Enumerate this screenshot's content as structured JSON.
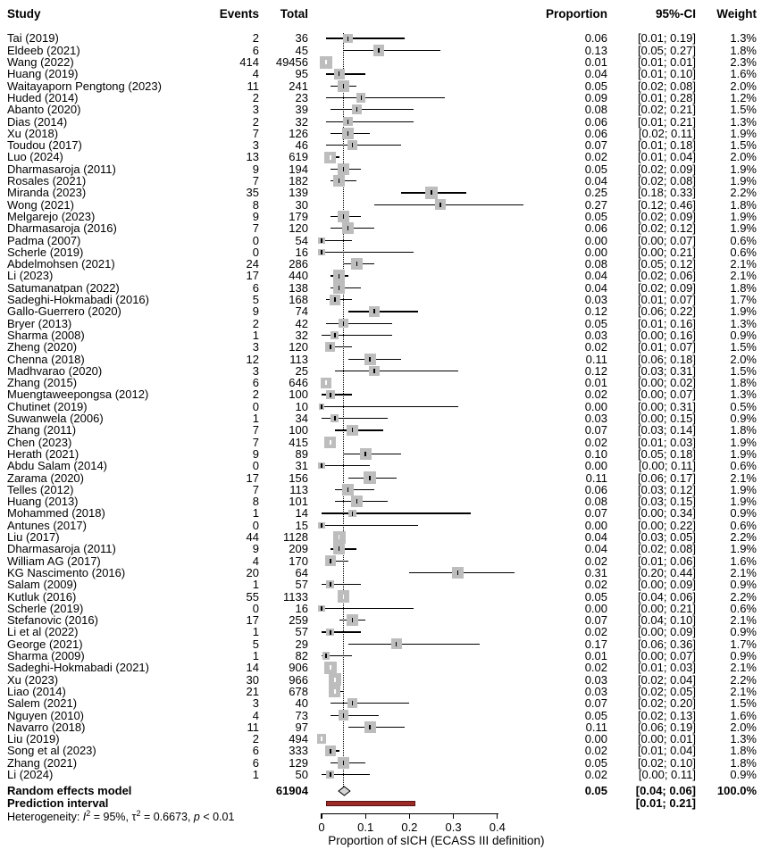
{
  "header": {
    "study": "Study",
    "events": "Events",
    "total": "Total",
    "proportion": "Proportion",
    "ci": "95%-CI",
    "weight": "Weight"
  },
  "summary": {
    "random_label": "Random effects model",
    "random_total": "61904",
    "random_proportion": "0.05",
    "random_ci": "[0.04; 0.06]",
    "random_weight": "100.0%",
    "prediction_label": "Prediction interval",
    "prediction_ci": "[0.01; 0.21]"
  },
  "het": {
    "pre": "Heterogeneity: ",
    "i": "I",
    "sup1": "2",
    "mid1": " = 95%, ",
    "tau": "τ",
    "sup2": "2",
    "mid2": " = 0.6673, ",
    "p": "p",
    "post": " < 0.01"
  },
  "axis": {
    "xlabel": "Proportion of sICH (ECASS III definition)"
  },
  "colors": {
    "square": "#bdbdbd",
    "diamond_fill": "#d4d4d4",
    "diamond_border": "#000000",
    "prediction_fill": "#9c2b28",
    "prediction_border": "#5a1412",
    "line": "#000000"
  },
  "chart_data": {
    "type": "forest",
    "xlabel": "Proportion of sICH (ECASS III definition)",
    "xlim": [
      0,
      0.46
    ],
    "x_ticks": [
      0,
      0.1,
      0.2,
      0.3,
      0.4
    ],
    "x_tick_labels": [
      "0",
      "0.1",
      "0.2",
      "0.3",
      "0.4"
    ],
    "pooled": {
      "label": "Random effects model",
      "total": 61904,
      "proportion": 0.05,
      "lower": 0.04,
      "upper": 0.06,
      "ci": "[0.04; 0.06]",
      "weight_text": "100.0%"
    },
    "prediction_interval": {
      "label": "Prediction interval",
      "lower": 0.01,
      "upper": 0.21,
      "ci": "[0.01; 0.21]"
    },
    "heterogeneity_text": "Heterogeneity: I² = 95%, τ² = 0.6673, p < 0.01",
    "studies": [
      {
        "study": "Tai (2019)",
        "events": 2,
        "total": 36,
        "proportion": 0.06,
        "lower": 0.01,
        "upper": 0.19,
        "ci": "[0.01; 0.19]",
        "weight": 1.3,
        "weight_text": "1.3%"
      },
      {
        "study": "Eldeeb (2021)",
        "events": 6,
        "total": 45,
        "proportion": 0.13,
        "lower": 0.05,
        "upper": 0.27,
        "ci": "[0.05; 0.27]",
        "weight": 1.8,
        "weight_text": "1.8%"
      },
      {
        "study": "Wang (2022)",
        "events": 414,
        "total": 49456,
        "proportion": 0.01,
        "lower": 0.01,
        "upper": 0.01,
        "ci": "[0.01; 0.01]",
        "weight": 2.3,
        "weight_text": "2.3%",
        "marker": "white"
      },
      {
        "study": "Huang (2019)",
        "events": 4,
        "total": 95,
        "proportion": 0.04,
        "lower": 0.01,
        "upper": 0.1,
        "ci": "[0.01; 0.10]",
        "weight": 1.6,
        "weight_text": "1.6%"
      },
      {
        "study": "Waitayaporn Pengtong (2023)",
        "events": 11,
        "total": 241,
        "proportion": 0.05,
        "lower": 0.02,
        "upper": 0.08,
        "ci": "[0.02; 0.08]",
        "weight": 2.0,
        "weight_text": "2.0%"
      },
      {
        "study": "Huded (2014)",
        "events": 2,
        "total": 23,
        "proportion": 0.09,
        "lower": 0.01,
        "upper": 0.28,
        "ci": "[0.01; 0.28]",
        "weight": 1.2,
        "weight_text": "1.2%"
      },
      {
        "study": "Abanto (2020)",
        "events": 3,
        "total": 39,
        "proportion": 0.08,
        "lower": 0.02,
        "upper": 0.21,
        "ci": "[0.02; 0.21]",
        "weight": 1.5,
        "weight_text": "1.5%"
      },
      {
        "study": "Dias (2014)",
        "events": 2,
        "total": 32,
        "proportion": 0.06,
        "lower": 0.01,
        "upper": 0.21,
        "ci": "[0.01; 0.21]",
        "weight": 1.3,
        "weight_text": "1.3%"
      },
      {
        "study": "Xu (2018)",
        "events": 7,
        "total": 126,
        "proportion": 0.06,
        "lower": 0.02,
        "upper": 0.11,
        "ci": "[0.02; 0.11]",
        "weight": 1.9,
        "weight_text": "1.9%"
      },
      {
        "study": "Toudou (2017)",
        "events": 3,
        "total": 46,
        "proportion": 0.07,
        "lower": 0.01,
        "upper": 0.18,
        "ci": "[0.01; 0.18]",
        "weight": 1.5,
        "weight_text": "1.5%"
      },
      {
        "study": "Luo (2024)",
        "events": 13,
        "total": 619,
        "proportion": 0.02,
        "lower": 0.01,
        "upper": 0.04,
        "ci": "[0.01; 0.04]",
        "weight": 2.0,
        "weight_text": "2.0%",
        "marker": "white"
      },
      {
        "study": "Dharmasaroja (2011)",
        "events": 9,
        "total": 194,
        "proportion": 0.05,
        "lower": 0.02,
        "upper": 0.09,
        "ci": "[0.02; 0.09]",
        "weight": 1.9,
        "weight_text": "1.9%"
      },
      {
        "study": "Rosales (2021)",
        "events": 7,
        "total": 182,
        "proportion": 0.04,
        "lower": 0.02,
        "upper": 0.08,
        "ci": "[0.02; 0.08]",
        "weight": 1.9,
        "weight_text": "1.9%"
      },
      {
        "study": "Miranda (2023)",
        "events": 35,
        "total": 139,
        "proportion": 0.25,
        "lower": 0.18,
        "upper": 0.33,
        "ci": "[0.18; 0.33]",
        "weight": 2.2,
        "weight_text": "2.2%"
      },
      {
        "study": "Wong (2021)",
        "events": 8,
        "total": 30,
        "proportion": 0.27,
        "lower": 0.12,
        "upper": 0.46,
        "ci": "[0.12; 0.46]",
        "weight": 1.8,
        "weight_text": "1.8%"
      },
      {
        "study": "Melgarejo (2023)",
        "events": 9,
        "total": 179,
        "proportion": 0.05,
        "lower": 0.02,
        "upper": 0.09,
        "ci": "[0.02; 0.09]",
        "weight": 1.9,
        "weight_text": "1.9%"
      },
      {
        "study": "Dharmasaroja (2016)",
        "events": 7,
        "total": 120,
        "proportion": 0.06,
        "lower": 0.02,
        "upper": 0.12,
        "ci": "[0.02; 0.12]",
        "weight": 1.9,
        "weight_text": "1.9%"
      },
      {
        "study": "Padma (2007)",
        "events": 0,
        "total": 54,
        "proportion": 0.0,
        "lower": 0.0,
        "upper": 0.07,
        "ci": "[0.00; 0.07]",
        "weight": 0.6,
        "weight_text": "0.6%"
      },
      {
        "study": "Scherle (2019)",
        "events": 0,
        "total": 16,
        "proportion": 0.0,
        "lower": 0.0,
        "upper": 0.21,
        "ci": "[0.00; 0.21]",
        "weight": 0.6,
        "weight_text": "0.6%"
      },
      {
        "study": "Abdelmohsen (2021)",
        "events": 24,
        "total": 286,
        "proportion": 0.08,
        "lower": 0.05,
        "upper": 0.12,
        "ci": "[0.05; 0.12]",
        "weight": 2.1,
        "weight_text": "2.1%"
      },
      {
        "study": "Li (2023)",
        "events": 17,
        "total": 440,
        "proportion": 0.04,
        "lower": 0.02,
        "upper": 0.06,
        "ci": "[0.02; 0.06]",
        "weight": 2.1,
        "weight_text": "2.1%"
      },
      {
        "study": "Satumanatpan (2022)",
        "events": 6,
        "total": 138,
        "proportion": 0.04,
        "lower": 0.02,
        "upper": 0.09,
        "ci": "[0.02; 0.09]",
        "weight": 1.8,
        "weight_text": "1.8%"
      },
      {
        "study": "Sadeghi-Hokmabadi (2016)",
        "events": 5,
        "total": 168,
        "proportion": 0.03,
        "lower": 0.01,
        "upper": 0.07,
        "ci": "[0.01; 0.07]",
        "weight": 1.7,
        "weight_text": "1.7%"
      },
      {
        "study": "Gallo-Guerrero (2020)",
        "events": 9,
        "total": 74,
        "proportion": 0.12,
        "lower": 0.06,
        "upper": 0.22,
        "ci": "[0.06; 0.22]",
        "weight": 1.9,
        "weight_text": "1.9%"
      },
      {
        "study": "Bryer (2013)",
        "events": 2,
        "total": 42,
        "proportion": 0.05,
        "lower": 0.01,
        "upper": 0.16,
        "ci": "[0.01; 0.16]",
        "weight": 1.3,
        "weight_text": "1.3%"
      },
      {
        "study": "Sharma (2008)",
        "events": 1,
        "total": 32,
        "proportion": 0.03,
        "lower": 0.0,
        "upper": 0.16,
        "ci": "[0.00; 0.16]",
        "weight": 0.9,
        "weight_text": "0.9%"
      },
      {
        "study": "Zheng (2020)",
        "events": 3,
        "total": 120,
        "proportion": 0.02,
        "lower": 0.01,
        "upper": 0.07,
        "ci": "[0.01; 0.07]",
        "weight": 1.5,
        "weight_text": "1.5%"
      },
      {
        "study": "Chenna (2018)",
        "events": 12,
        "total": 113,
        "proportion": 0.11,
        "lower": 0.06,
        "upper": 0.18,
        "ci": "[0.06; 0.18]",
        "weight": 2.0,
        "weight_text": "2.0%"
      },
      {
        "study": "Madhvarao (2020)",
        "events": 3,
        "total": 25,
        "proportion": 0.12,
        "lower": 0.03,
        "upper": 0.31,
        "ci": "[0.03; 0.31]",
        "weight": 1.5,
        "weight_text": "1.5%"
      },
      {
        "study": "Zhang (2015)",
        "events": 6,
        "total": 646,
        "proportion": 0.01,
        "lower": 0.0,
        "upper": 0.02,
        "ci": "[0.00; 0.02]",
        "weight": 1.8,
        "weight_text": "1.8%",
        "marker": "white"
      },
      {
        "study": "Muengtaweepongsa (2012)",
        "events": 2,
        "total": 100,
        "proportion": 0.02,
        "lower": 0.0,
        "upper": 0.07,
        "ci": "[0.00; 0.07]",
        "weight": 1.3,
        "weight_text": "1.3%"
      },
      {
        "study": "Chutinet (2019)",
        "events": 0,
        "total": 10,
        "proportion": 0.0,
        "lower": 0.0,
        "upper": 0.31,
        "ci": "[0.00; 0.31]",
        "weight": 0.5,
        "weight_text": "0.5%"
      },
      {
        "study": "Suwanwela (2006)",
        "events": 1,
        "total": 34,
        "proportion": 0.03,
        "lower": 0.0,
        "upper": 0.15,
        "ci": "[0.00; 0.15]",
        "weight": 0.9,
        "weight_text": "0.9%"
      },
      {
        "study": "Zhang (2011)",
        "events": 7,
        "total": 100,
        "proportion": 0.07,
        "lower": 0.03,
        "upper": 0.14,
        "ci": "[0.03; 0.14]",
        "weight": 1.8,
        "weight_text": "1.8%"
      },
      {
        "study": "Chen (2023)",
        "events": 7,
        "total": 415,
        "proportion": 0.02,
        "lower": 0.01,
        "upper": 0.03,
        "ci": "[0.01; 0.03]",
        "weight": 1.9,
        "weight_text": "1.9%",
        "marker": "white"
      },
      {
        "study": "Herath (2021)",
        "events": 9,
        "total": 89,
        "proportion": 0.1,
        "lower": 0.05,
        "upper": 0.18,
        "ci": "[0.05; 0.18]",
        "weight": 1.9,
        "weight_text": "1.9%"
      },
      {
        "study": "Abdu Salam (2014)",
        "events": 0,
        "total": 31,
        "proportion": 0.0,
        "lower": 0.0,
        "upper": 0.11,
        "ci": "[0.00; 0.11]",
        "weight": 0.6,
        "weight_text": "0.6%"
      },
      {
        "study": "Zarama (2020)",
        "events": 17,
        "total": 156,
        "proportion": 0.11,
        "lower": 0.06,
        "upper": 0.17,
        "ci": "[0.06; 0.17]",
        "weight": 2.1,
        "weight_text": "2.1%"
      },
      {
        "study": "Telles (2012)",
        "events": 7,
        "total": 113,
        "proportion": 0.06,
        "lower": 0.03,
        "upper": 0.12,
        "ci": "[0.03; 0.12]",
        "weight": 1.9,
        "weight_text": "1.9%"
      },
      {
        "study": "Huang (2013)",
        "events": 8,
        "total": 101,
        "proportion": 0.08,
        "lower": 0.03,
        "upper": 0.15,
        "ci": "[0.03; 0.15]",
        "weight": 1.9,
        "weight_text": "1.9%"
      },
      {
        "study": "Mohammed (2018)",
        "events": 1,
        "total": 14,
        "proportion": 0.07,
        "lower": 0.0,
        "upper": 0.34,
        "ci": "[0.00; 0.34]",
        "weight": 0.9,
        "weight_text": "0.9%"
      },
      {
        "study": "Antunes (2017)",
        "events": 0,
        "total": 15,
        "proportion": 0.0,
        "lower": 0.0,
        "upper": 0.22,
        "ci": "[0.00; 0.22]",
        "weight": 0.6,
        "weight_text": "0.6%"
      },
      {
        "study": "Liu (2017)",
        "events": 44,
        "total": 1128,
        "proportion": 0.04,
        "lower": 0.03,
        "upper": 0.05,
        "ci": "[0.03; 0.05]",
        "weight": 2.2,
        "weight_text": "2.2%",
        "marker": "white"
      },
      {
        "study": "Dharmasaroja (2011)",
        "events": 9,
        "total": 209,
        "proportion": 0.04,
        "lower": 0.02,
        "upper": 0.08,
        "ci": "[0.02; 0.08]",
        "weight": 1.9,
        "weight_text": "1.9%"
      },
      {
        "study": "William AG (2017)",
        "events": 4,
        "total": 170,
        "proportion": 0.02,
        "lower": 0.01,
        "upper": 0.06,
        "ci": "[0.01; 0.06]",
        "weight": 1.6,
        "weight_text": "1.6%"
      },
      {
        "study": "KG Nascimento (2016)",
        "events": 20,
        "total": 64,
        "proportion": 0.31,
        "lower": 0.2,
        "upper": 0.44,
        "ci": "[0.20; 0.44]",
        "weight": 2.1,
        "weight_text": "2.1%"
      },
      {
        "study": "Salam (2009)",
        "events": 1,
        "total": 57,
        "proportion": 0.02,
        "lower": 0.0,
        "upper": 0.09,
        "ci": "[0.00; 0.09]",
        "weight": 0.9,
        "weight_text": "0.9%"
      },
      {
        "study": "Kutluk (2016)",
        "events": 55,
        "total": 1133,
        "proportion": 0.05,
        "lower": 0.04,
        "upper": 0.06,
        "ci": "[0.04; 0.06]",
        "weight": 2.2,
        "weight_text": "2.2%",
        "marker": "white"
      },
      {
        "study": "Scherle (2019)",
        "events": 0,
        "total": 16,
        "proportion": 0.0,
        "lower": 0.0,
        "upper": 0.21,
        "ci": "[0.00; 0.21]",
        "weight": 0.6,
        "weight_text": "0.6%"
      },
      {
        "study": "Stefanovic (2016)",
        "events": 17,
        "total": 259,
        "proportion": 0.07,
        "lower": 0.04,
        "upper": 0.1,
        "ci": "[0.04; 0.10]",
        "weight": 2.1,
        "weight_text": "2.1%"
      },
      {
        "study": "Li et al (2022)",
        "events": 1,
        "total": 57,
        "proportion": 0.02,
        "lower": 0.0,
        "upper": 0.09,
        "ci": "[0.00; 0.09]",
        "weight": 0.9,
        "weight_text": "0.9%"
      },
      {
        "study": "George (2021)",
        "events": 5,
        "total": 29,
        "proportion": 0.17,
        "lower": 0.06,
        "upper": 0.36,
        "ci": "[0.06; 0.36]",
        "weight": 1.7,
        "weight_text": "1.7%"
      },
      {
        "study": "Sharma (2009)",
        "events": 1,
        "total": 82,
        "proportion": 0.01,
        "lower": 0.0,
        "upper": 0.07,
        "ci": "[0.00; 0.07]",
        "weight": 0.9,
        "weight_text": "0.9%"
      },
      {
        "study": "Sadeghi-Hokmabadi (2021)",
        "events": 14,
        "total": 906,
        "proportion": 0.02,
        "lower": 0.01,
        "upper": 0.03,
        "ci": "[0.01; 0.03]",
        "weight": 2.1,
        "weight_text": "2.1%",
        "marker": "white"
      },
      {
        "study": "Xu (2023)",
        "events": 30,
        "total": 966,
        "proportion": 0.03,
        "lower": 0.02,
        "upper": 0.04,
        "ci": "[0.02; 0.04]",
        "weight": 2.2,
        "weight_text": "2.2%",
        "marker": "white"
      },
      {
        "study": "Liao (2014)",
        "events": 21,
        "total": 678,
        "proportion": 0.03,
        "lower": 0.02,
        "upper": 0.05,
        "ci": "[0.02; 0.05]",
        "weight": 2.1,
        "weight_text": "2.1%",
        "marker": "white"
      },
      {
        "study": "Salem (2021)",
        "events": 3,
        "total": 40,
        "proportion": 0.07,
        "lower": 0.02,
        "upper": 0.2,
        "ci": "[0.02; 0.20]",
        "weight": 1.5,
        "weight_text": "1.5%"
      },
      {
        "study": "Nguyen (2010)",
        "events": 4,
        "total": 73,
        "proportion": 0.05,
        "lower": 0.02,
        "upper": 0.13,
        "ci": "[0.02; 0.13]",
        "weight": 1.6,
        "weight_text": "1.6%"
      },
      {
        "study": "Navarro (2018)",
        "events": 11,
        "total": 97,
        "proportion": 0.11,
        "lower": 0.06,
        "upper": 0.19,
        "ci": "[0.06; 0.19]",
        "weight": 2.0,
        "weight_text": "2.0%"
      },
      {
        "study": "Liu (2019)",
        "events": 2,
        "total": 494,
        "proportion": 0.0,
        "lower": 0.0,
        "upper": 0.01,
        "ci": "[0.00; 0.01]",
        "weight": 1.3,
        "weight_text": "1.3%",
        "marker": "white"
      },
      {
        "study": "Song et al (2023)",
        "events": 6,
        "total": 333,
        "proportion": 0.02,
        "lower": 0.01,
        "upper": 0.04,
        "ci": "[0.01; 0.04]",
        "weight": 1.8,
        "weight_text": "1.8%"
      },
      {
        "study": "Zhang (2021)",
        "events": 6,
        "total": 129,
        "proportion": 0.05,
        "lower": 0.02,
        "upper": 0.1,
        "ci": "[0.02; 0.10]",
        "weight": 1.8,
        "weight_text": "1.8%"
      },
      {
        "study": "Li (2024)",
        "events": 1,
        "total": 50,
        "proportion": 0.02,
        "lower": 0.0,
        "upper": 0.11,
        "ci": "[0.00; 0.11]",
        "weight": 0.9,
        "weight_text": "0.9%"
      }
    ]
  }
}
